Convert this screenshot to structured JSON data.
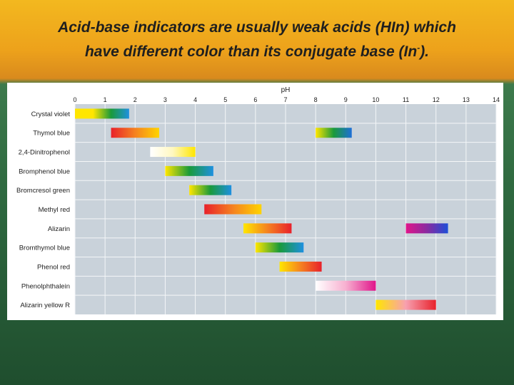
{
  "slide": {
    "title_line1": "Acid-base indicators are usually weak acids (HIn) which",
    "title_line2_before": "have different color than its conjugate base (In",
    "title_sup": "-",
    "title_line2_after": ")."
  },
  "chart_data": {
    "type": "bar",
    "title": "",
    "xlabel": "pH",
    "ylabel": "",
    "xlim": [
      0,
      14
    ],
    "xticks": [
      0,
      1,
      2,
      3,
      4,
      5,
      6,
      7,
      8,
      9,
      10,
      11,
      12,
      13,
      14
    ],
    "grid": true,
    "categories": [
      "Crystal violet",
      "Thymol blue",
      "2,4-Dinitrophenol",
      "Bromphenol blue",
      "Bromcresol green",
      "Methyl red",
      "Alizarin",
      "Bromthymol blue",
      "Phenol red",
      "Phenolphthalein",
      "Alizarin yellow R"
    ],
    "ranges": [
      {
        "indicator": "Crystal violet",
        "from": 0.0,
        "to": 1.8,
        "colors": [
          "#ffe600",
          "#ffe600",
          "#1a9a3a",
          "#1e90e0"
        ]
      },
      {
        "indicator": "Thymol blue",
        "from": 1.2,
        "to": 2.8,
        "colors": [
          "#e8212b",
          "#f58220",
          "#ffd400"
        ]
      },
      {
        "indicator": "Thymol blue",
        "from": 8.0,
        "to": 9.2,
        "colors": [
          "#ffe600",
          "#1a9a3a",
          "#1e6fd8"
        ]
      },
      {
        "indicator": "2,4-Dinitrophenol",
        "from": 2.5,
        "to": 4.0,
        "colors": [
          "#ffffff",
          "#fff8c0",
          "#ffe600"
        ]
      },
      {
        "indicator": "Bromphenol blue",
        "from": 3.0,
        "to": 4.6,
        "colors": [
          "#ffe600",
          "#1a9a3a",
          "#1e90e0"
        ]
      },
      {
        "indicator": "Bromcresol green",
        "from": 3.8,
        "to": 5.2,
        "colors": [
          "#ffe600",
          "#1a9a3a",
          "#1e90e0"
        ]
      },
      {
        "indicator": "Methyl red",
        "from": 4.3,
        "to": 6.2,
        "colors": [
          "#e8212b",
          "#f58220",
          "#ffd400"
        ]
      },
      {
        "indicator": "Alizarin",
        "from": 5.6,
        "to": 7.2,
        "colors": [
          "#ffe600",
          "#f58220",
          "#e8212b"
        ]
      },
      {
        "indicator": "Alizarin",
        "from": 11.0,
        "to": 12.4,
        "colors": [
          "#e0158a",
          "#8a2aa0",
          "#1e4fd8"
        ]
      },
      {
        "indicator": "Bromthymol blue",
        "from": 6.0,
        "to": 7.6,
        "colors": [
          "#ffe600",
          "#1a9a3a",
          "#1e90e0"
        ]
      },
      {
        "indicator": "Phenol red",
        "from": 6.8,
        "to": 8.2,
        "colors": [
          "#ffe600",
          "#f58220",
          "#e8212b"
        ]
      },
      {
        "indicator": "Phenolphthalein",
        "from": 8.0,
        "to": 10.0,
        "colors": [
          "#ffffff",
          "#f7b0d0",
          "#e0158a"
        ]
      },
      {
        "indicator": "Alizarin yellow R",
        "from": 10.0,
        "to": 12.0,
        "colors": [
          "#ffe600",
          "#f7a0b0",
          "#e8212b"
        ]
      }
    ],
    "colors": {
      "plot_background": "#c9d2da",
      "grid": "#f4f6f8"
    }
  }
}
